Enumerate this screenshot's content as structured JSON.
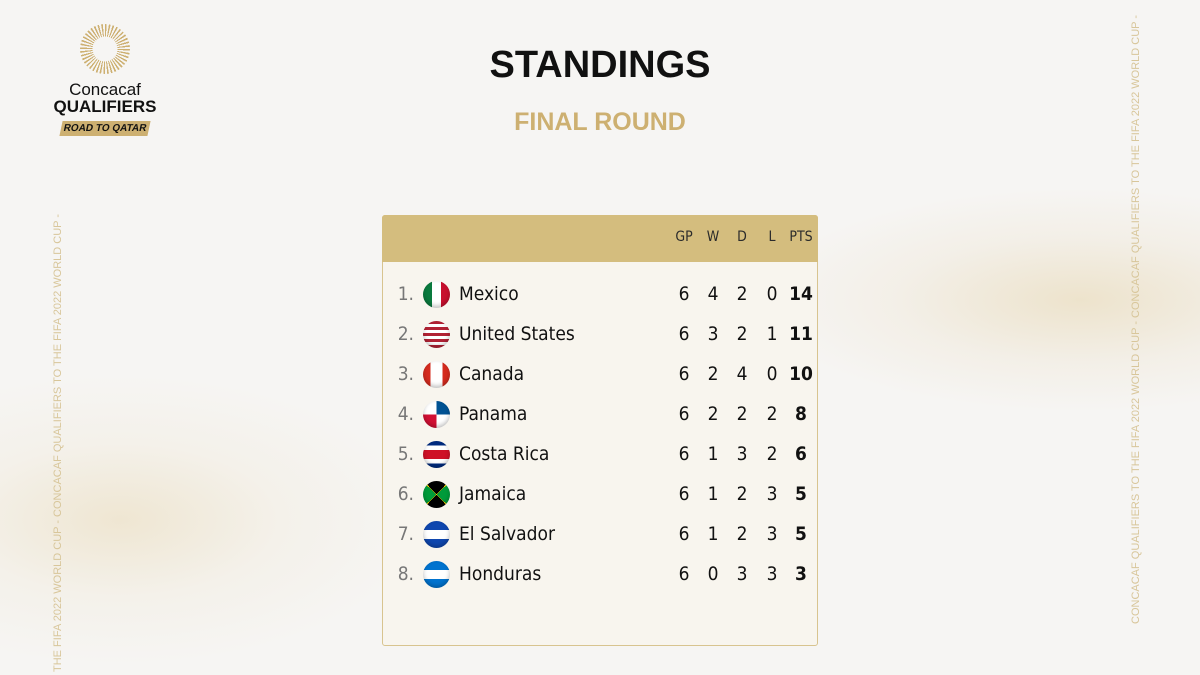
{
  "logo": {
    "line1": "Concacaf",
    "line2": "QUALIFIERS",
    "badge": "ROAD TO QATAR"
  },
  "header": {
    "title": "STANDINGS",
    "subtitle": "FINAL ROUND"
  },
  "side_text": {
    "left": "THE FIFA 2022 WORLD CUP - CONCACAF QUALIFIERS TO THE FIFA 2022 WORLD CUP -",
    "right": "CONCACAF QUALIFIERS TO THE FIFA 2022 WORLD CUP - CONCACAF QUALIFIERS TO THE FIFA 2022 WORLD CUP -"
  },
  "table": {
    "columns": [
      "GP",
      "W",
      "D",
      "L",
      "PTS"
    ],
    "rows": [
      {
        "rank": "1.",
        "team": "Mexico",
        "stats": [
          6,
          4,
          2,
          0,
          14
        ]
      },
      {
        "rank": "2.",
        "team": "United States",
        "stats": [
          6,
          3,
          2,
          1,
          11
        ]
      },
      {
        "rank": "3.",
        "team": "Canada",
        "stats": [
          6,
          2,
          4,
          0,
          10
        ]
      },
      {
        "rank": "4.",
        "team": "Panama",
        "stats": [
          6,
          2,
          2,
          2,
          8
        ]
      },
      {
        "rank": "5.",
        "team": "Costa Rica",
        "stats": [
          6,
          1,
          3,
          2,
          6
        ]
      },
      {
        "rank": "6.",
        "team": "Jamaica",
        "stats": [
          6,
          1,
          2,
          3,
          5
        ]
      },
      {
        "rank": "7.",
        "team": "El Salvador",
        "stats": [
          6,
          1,
          2,
          3,
          5
        ]
      },
      {
        "rank": "8.",
        "team": "Honduras",
        "stats": [
          6,
          0,
          3,
          3,
          3
        ]
      }
    ]
  }
}
